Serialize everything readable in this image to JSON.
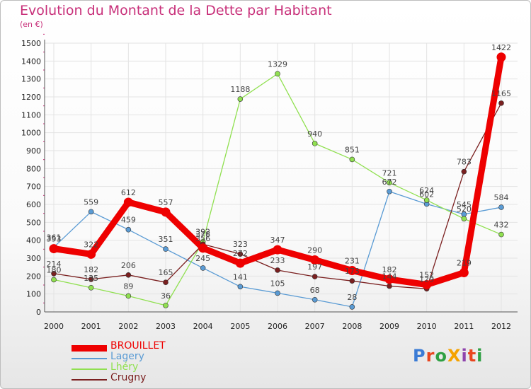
{
  "chart_data": {
    "type": "line",
    "title": "Evolution du Montant de la Dette par Habitant",
    "subtitle": "(en €)",
    "xlabel": "",
    "ylabel": "",
    "ylim": [
      0,
      1500
    ],
    "ystep": 100,
    "grid": true,
    "legend_position": "bottom-left",
    "categories": [
      "2000",
      "2001",
      "2002",
      "2003",
      "2004",
      "2005",
      "2006",
      "2007",
      "2008",
      "2009",
      "2010",
      "2011",
      "2012"
    ],
    "series": [
      {
        "name": "BROUILLET",
        "color": "#ee0000",
        "values": [
          353,
          322,
          612,
          557,
          356,
          272,
          347,
          290,
          231,
          182,
          152,
          219,
          1422
        ]
      },
      {
        "name": "Lagery",
        "color": "#5a9bd4",
        "values": [
          361,
          559,
          459,
          351,
          245,
          141,
          105,
          68,
          28,
          672,
          602,
          545,
          584
        ]
      },
      {
        "name": "Lhéry",
        "color": "#90e050",
        "values": [
          180,
          135,
          89,
          36,
          392,
          1188,
          1329,
          940,
          851,
          721,
          624,
          520,
          432
        ]
      },
      {
        "name": "Crugny",
        "color": "#7a1f1f",
        "values": [
          214,
          182,
          206,
          165,
          378,
          323,
          233,
          197,
          173,
          144,
          129,
          783,
          1165
        ]
      }
    ]
  },
  "logo": {
    "text": "ProXiti"
  }
}
